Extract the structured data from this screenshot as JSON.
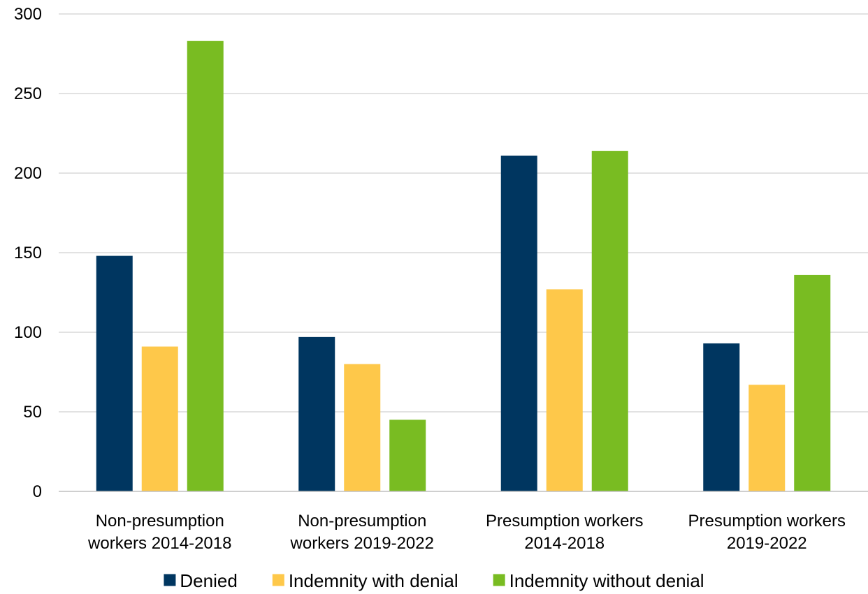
{
  "chart_data": {
    "type": "bar",
    "title": "",
    "xlabel": "",
    "ylabel": "",
    "ylim": [
      0,
      300
    ],
    "yticks": [
      "0",
      "50",
      "100",
      "150",
      "200",
      "250",
      "300"
    ],
    "grid": true,
    "legend_position": "bottom",
    "categories": [
      [
        "Non-presumption",
        "workers 2014-2018"
      ],
      [
        "Non-presumption",
        "workers 2019-2022"
      ],
      [
        "Presumption workers",
        "2014-2018"
      ],
      [
        "Presumption workers",
        "2019-2022"
      ]
    ],
    "series": [
      {
        "name": "Denied",
        "color": "#003660",
        "values": [
          148,
          97,
          211,
          93
        ]
      },
      {
        "name": "Indemnity with denial",
        "color": "#FEC84A",
        "values": [
          91,
          80,
          127,
          67
        ]
      },
      {
        "name": "Indemnity without denial",
        "color": "#79BC22",
        "values": [
          283,
          45,
          214,
          136
        ]
      }
    ],
    "gridline_color": "#d9d9d9",
    "axis_color": "#bfbfbf"
  }
}
